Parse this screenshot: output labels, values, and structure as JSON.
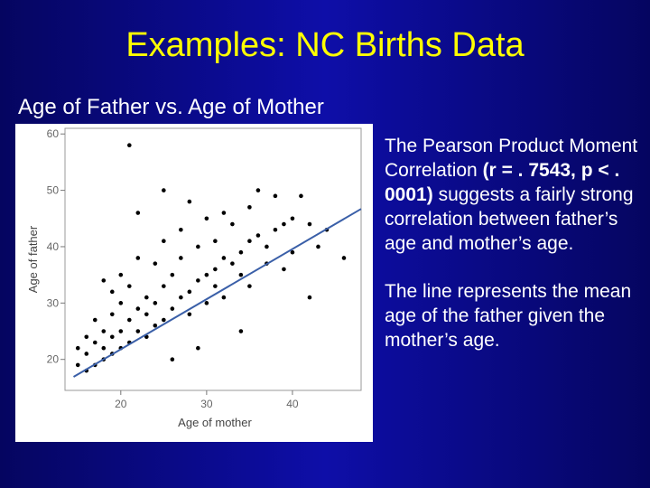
{
  "title": "Examples: NC Births Data",
  "subtitle": "Age of Father vs. Age of Mother",
  "paragraphs": [
    [
      "The Pearson Product Moment Correlation",
      "(r = . 7543, p < . 0001)",
      "suggests a fairly strong correlation between father’s age and mother’s age."
    ],
    [
      "The line represents the mean age of the father given the mother’s age."
    ]
  ],
  "chart_data": {
    "type": "scatter",
    "x_label": "Age of mother",
    "y_label": "Age of father",
    "x": [
      15,
      15,
      16,
      16,
      16,
      17,
      17,
      17,
      18,
      18,
      18,
      18,
      19,
      19,
      19,
      19,
      20,
      20,
      20,
      20,
      21,
      21,
      21,
      21,
      22,
      22,
      22,
      22,
      23,
      23,
      23,
      24,
      24,
      24,
      25,
      25,
      25,
      25,
      26,
      26,
      26,
      27,
      27,
      27,
      28,
      28,
      28,
      29,
      29,
      29,
      30,
      30,
      30,
      31,
      31,
      31,
      32,
      32,
      32,
      33,
      33,
      34,
      34,
      34,
      35,
      35,
      35,
      36,
      36,
      37,
      37,
      38,
      38,
      39,
      39,
      40,
      40,
      41,
      42,
      42,
      43,
      44,
      46
    ],
    "y": [
      22,
      19,
      18,
      21,
      24,
      19,
      23,
      27,
      20,
      22,
      25,
      34,
      21,
      24,
      28,
      32,
      22,
      25,
      30,
      35,
      58,
      23,
      27,
      33,
      46,
      25,
      29,
      38,
      24,
      28,
      31,
      37,
      26,
      30,
      50,
      27,
      33,
      41,
      29,
      35,
      20,
      31,
      38,
      43,
      32,
      48,
      28,
      34,
      40,
      22,
      35,
      30,
      45,
      36,
      33,
      41,
      38,
      46,
      31,
      37,
      44,
      39,
      35,
      25,
      41,
      47,
      33,
      42,
      50,
      40,
      37,
      43,
      49,
      44,
      36,
      45,
      39,
      49,
      44,
      31,
      40,
      43,
      38
    ],
    "color": "#000000",
    "xlim": [
      13.5,
      48
    ],
    "ylim": [
      14.5,
      61
    ],
    "xticks": [
      20,
      30,
      40
    ],
    "yticks": [
      20,
      30,
      40,
      50,
      60
    ],
    "fit": {
      "x": [
        14.5,
        48
      ],
      "y": [
        16.9,
        46.7
      ],
      "color": "#3a5fa8"
    }
  }
}
